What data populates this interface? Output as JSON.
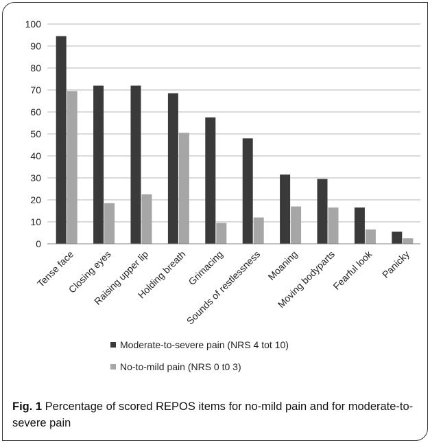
{
  "chart_data": {
    "type": "bar",
    "categories": [
      "Tense face",
      "Closing eyes",
      "Raising upper lip",
      "Holding breath",
      "Grimacing",
      "Sounds of restlessness",
      "Moaning",
      "Moving bodyparts",
      "Fearful look",
      "Panicky"
    ],
    "series": [
      {
        "name": "Moderate-to-severe pain (NRS 4 tot 10)",
        "values": [
          94.5,
          72,
          72,
          68.5,
          57.5,
          48,
          31.5,
          29.5,
          16.5,
          5.5
        ],
        "color": "#3a3a3a"
      },
      {
        "name": "No-to-mild pain (NRS 0 t0 3)",
        "values": [
          69.5,
          18.5,
          22.5,
          50.5,
          9.5,
          12,
          17,
          16.5,
          6.5,
          2.5
        ],
        "color": "#a6a6a6"
      }
    ],
    "ylim": [
      0,
      100
    ],
    "yticks": [
      0,
      10,
      20,
      30,
      40,
      50,
      60,
      70,
      80,
      90,
      100
    ],
    "grid": true,
    "legend": "bottom"
  },
  "caption": {
    "label": "Fig. 1",
    "text": " Percentage of scored REPOS items for no-mild pain and for moderate-to-severe pain"
  }
}
